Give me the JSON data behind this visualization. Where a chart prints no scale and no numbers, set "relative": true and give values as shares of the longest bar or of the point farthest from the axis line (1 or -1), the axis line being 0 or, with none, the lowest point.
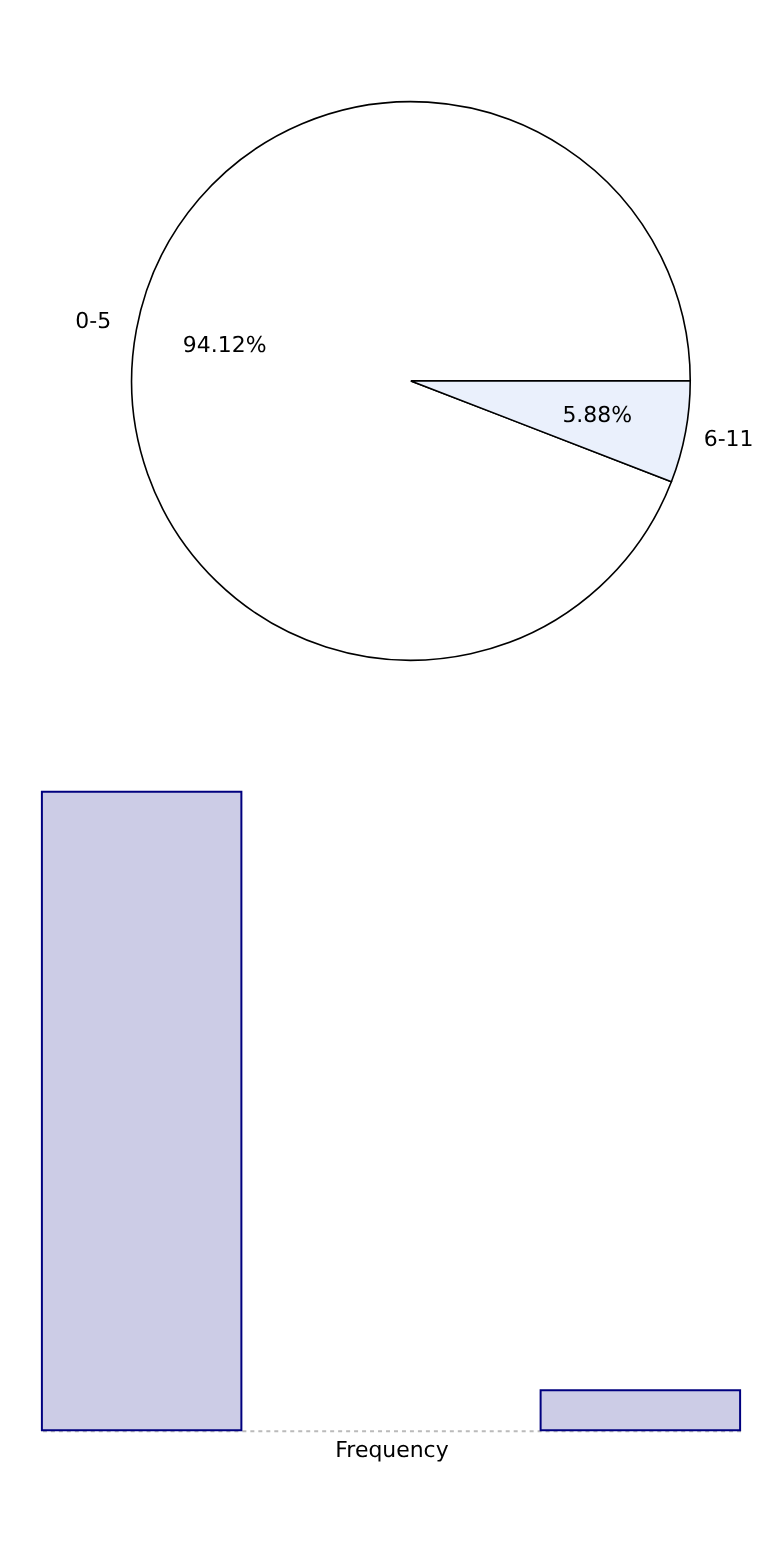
{
  "chart_data": [
    {
      "type": "pie",
      "categories": [
        "0-5",
        "6-11"
      ],
      "values": [
        94.12,
        5.88
      ],
      "colors": [
        "#ffffff",
        "#eaf0fc"
      ],
      "value_labels": [
        "94.12%",
        "5.88%"
      ]
    },
    {
      "type": "bar",
      "relative": true,
      "categories": [
        null,
        null
      ],
      "values": [
        1,
        0.0625
      ],
      "color": "#ccccE6",
      "xlabel": "Frequency",
      "tick_labels": false,
      "grid": false
    }
  ]
}
